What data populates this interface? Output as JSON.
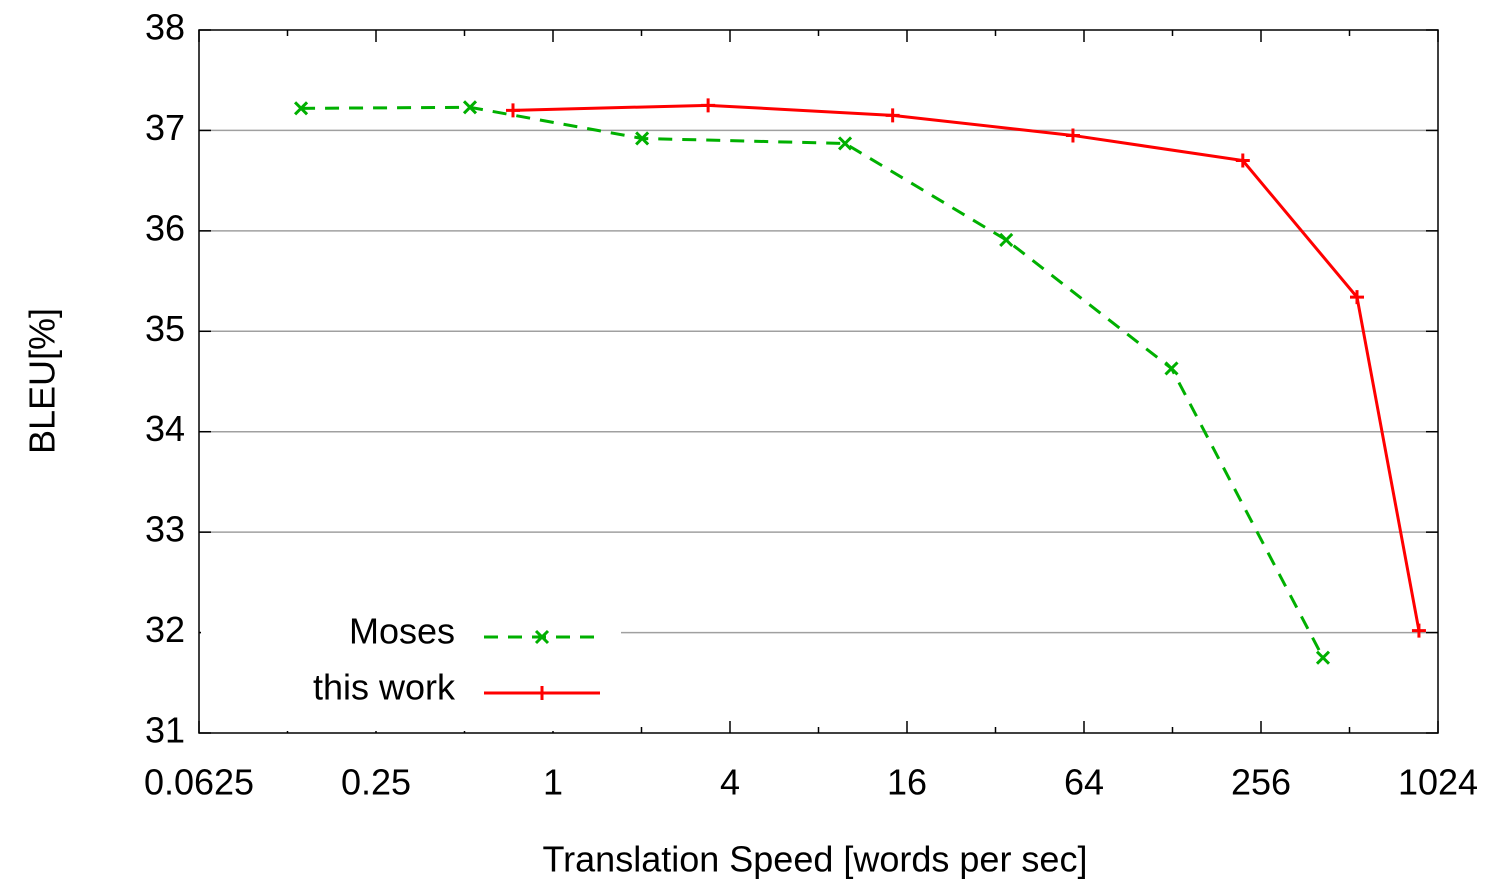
{
  "chart_data": {
    "type": "line",
    "xlabel": "Translation Speed [words per sec]",
    "ylabel": "BLEU[%]",
    "xscale": "log",
    "xlim": [
      0.0625,
      1024
    ],
    "xticks": [
      0.0625,
      0.25,
      1,
      4,
      16,
      64,
      256,
      1024
    ],
    "ylim": [
      31,
      38
    ],
    "yticks": [
      31,
      32,
      33,
      34,
      35,
      36,
      37,
      38
    ],
    "grid": true,
    "legend_position": "bottom left",
    "series": [
      {
        "name": "Moses",
        "color": "#00b000",
        "line_style": "dashed",
        "marker": "x",
        "x": [
          0.139,
          0.522,
          2.01,
          9.85,
          34.8,
          127,
          416
        ],
        "values": [
          37.22,
          37.23,
          36.92,
          36.87,
          35.91,
          34.63,
          31.75
        ]
      },
      {
        "name": "this work",
        "color": "#ff0000",
        "line_style": "solid",
        "marker": "+",
        "x": [
          0.731,
          3.37,
          14.3,
          58.7,
          222,
          543,
          882
        ],
        "values": [
          37.2,
          37.25,
          37.15,
          36.95,
          36.7,
          35.34,
          32.02
        ]
      }
    ]
  }
}
